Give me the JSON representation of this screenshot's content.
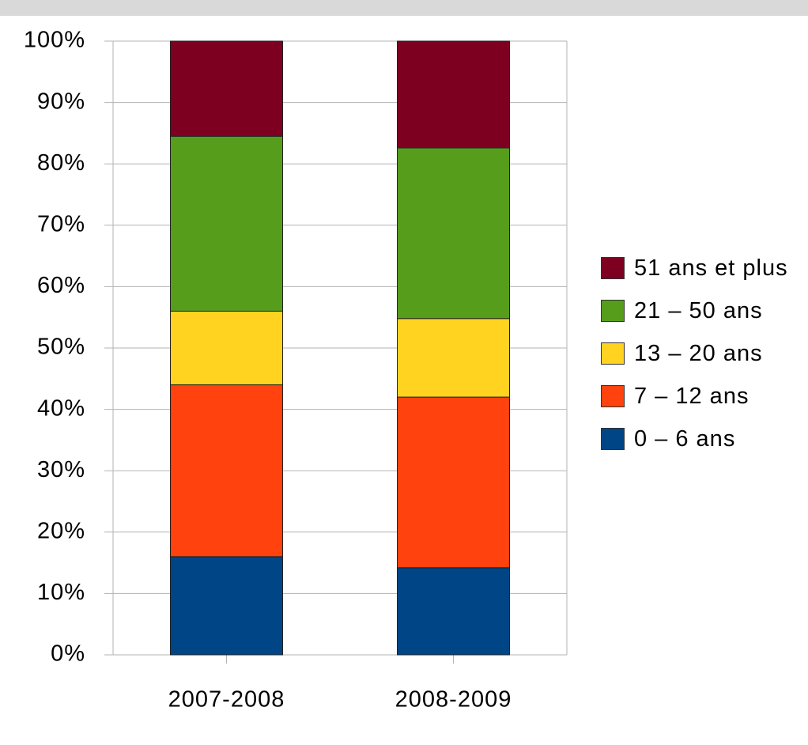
{
  "chart_data": {
    "type": "stacked_bar",
    "categories": [
      "2007-2008",
      "2008-2009"
    ],
    "series": [
      {
        "name": "0 – 6 ans",
        "color": "#004586",
        "values": [
          16,
          14.2
        ]
      },
      {
        "name": "7 – 12 ans",
        "color": "#ff420e",
        "values": [
          28,
          27.8
        ]
      },
      {
        "name": "13 – 20 ans",
        "color": "#ffd320",
        "values": [
          12,
          12.8
        ]
      },
      {
        "name": "21 – 50 ans",
        "color": "#579d1c",
        "values": [
          28.5,
          27.8
        ]
      },
      {
        "name": "51 ans et plus",
        "color": "#7e0021",
        "values": [
          15.5,
          17.4
        ]
      }
    ],
    "ylim": [
      0,
      100
    ],
    "yticks": [
      {
        "value": 0,
        "label": "0%"
      },
      {
        "value": 10,
        "label": "10%"
      },
      {
        "value": 20,
        "label": "20%"
      },
      {
        "value": 30,
        "label": "30%"
      },
      {
        "value": 40,
        "label": "40%"
      },
      {
        "value": 50,
        "label": "50%"
      },
      {
        "value": 60,
        "label": "60%"
      },
      {
        "value": 70,
        "label": "70%"
      },
      {
        "value": 80,
        "label": "80%"
      },
      {
        "value": 90,
        "label": "90%"
      },
      {
        "value": 100,
        "label": "100%"
      }
    ],
    "grid": true,
    "legend": "right"
  }
}
